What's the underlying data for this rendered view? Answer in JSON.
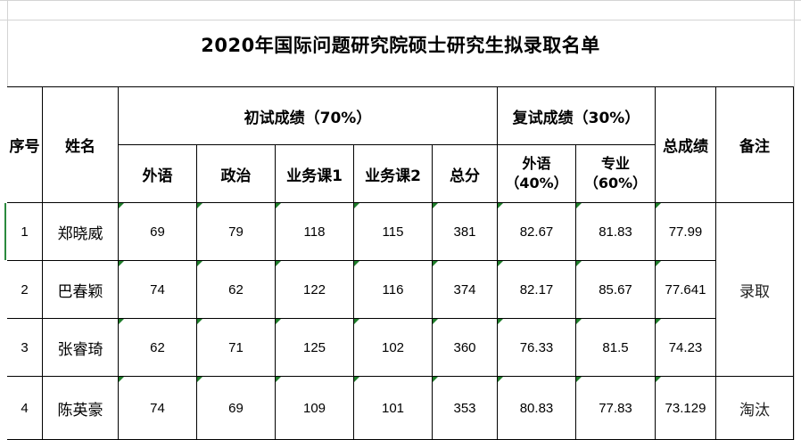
{
  "title": "2020年国际问题研究院硕士研究生拟录取名单",
  "headers": {
    "seq": "序号",
    "name": "姓名",
    "initial": "初试成绩（70%）",
    "retest": "复试成绩（30%）",
    "total": "总成绩",
    "note": "备注",
    "foreign": "外语",
    "politics": "政治",
    "course1": "业务课1",
    "course2": "业务课2",
    "sum": "总分",
    "retest_foreign": [
      "外语",
      "（40%）"
    ],
    "retest_major": [
      "专业",
      "（60%）"
    ]
  },
  "rows": [
    {
      "seq": "1",
      "name": "郑晓威",
      "foreign": "69",
      "politics": "79",
      "course1": "118",
      "course2": "115",
      "sum": "381",
      "rf": "82.67",
      "rm": "81.83",
      "total": "77.99"
    },
    {
      "seq": "2",
      "name": "巴春颖",
      "foreign": "74",
      "politics": "62",
      "course1": "122",
      "course2": "116",
      "sum": "374",
      "rf": "82.17",
      "rm": "85.67",
      "total": "77.641"
    },
    {
      "seq": "3",
      "name": "张睿琦",
      "foreign": "62",
      "politics": "71",
      "course1": "125",
      "course2": "102",
      "sum": "360",
      "rf": "76.33",
      "rm": "81.5",
      "total": "74.23"
    },
    {
      "seq": "4",
      "name": "陈英豪",
      "foreign": "74",
      "politics": "69",
      "course1": "109",
      "course2": "101",
      "sum": "353",
      "rf": "80.83",
      "rm": "77.83",
      "total": "73.129"
    }
  ],
  "notes": {
    "admitted": "录取",
    "eliminated": "淘汰"
  },
  "colors": {
    "indicator": "#1e7d2a",
    "gridline": "#d4d4d4",
    "border": "#000000"
  }
}
